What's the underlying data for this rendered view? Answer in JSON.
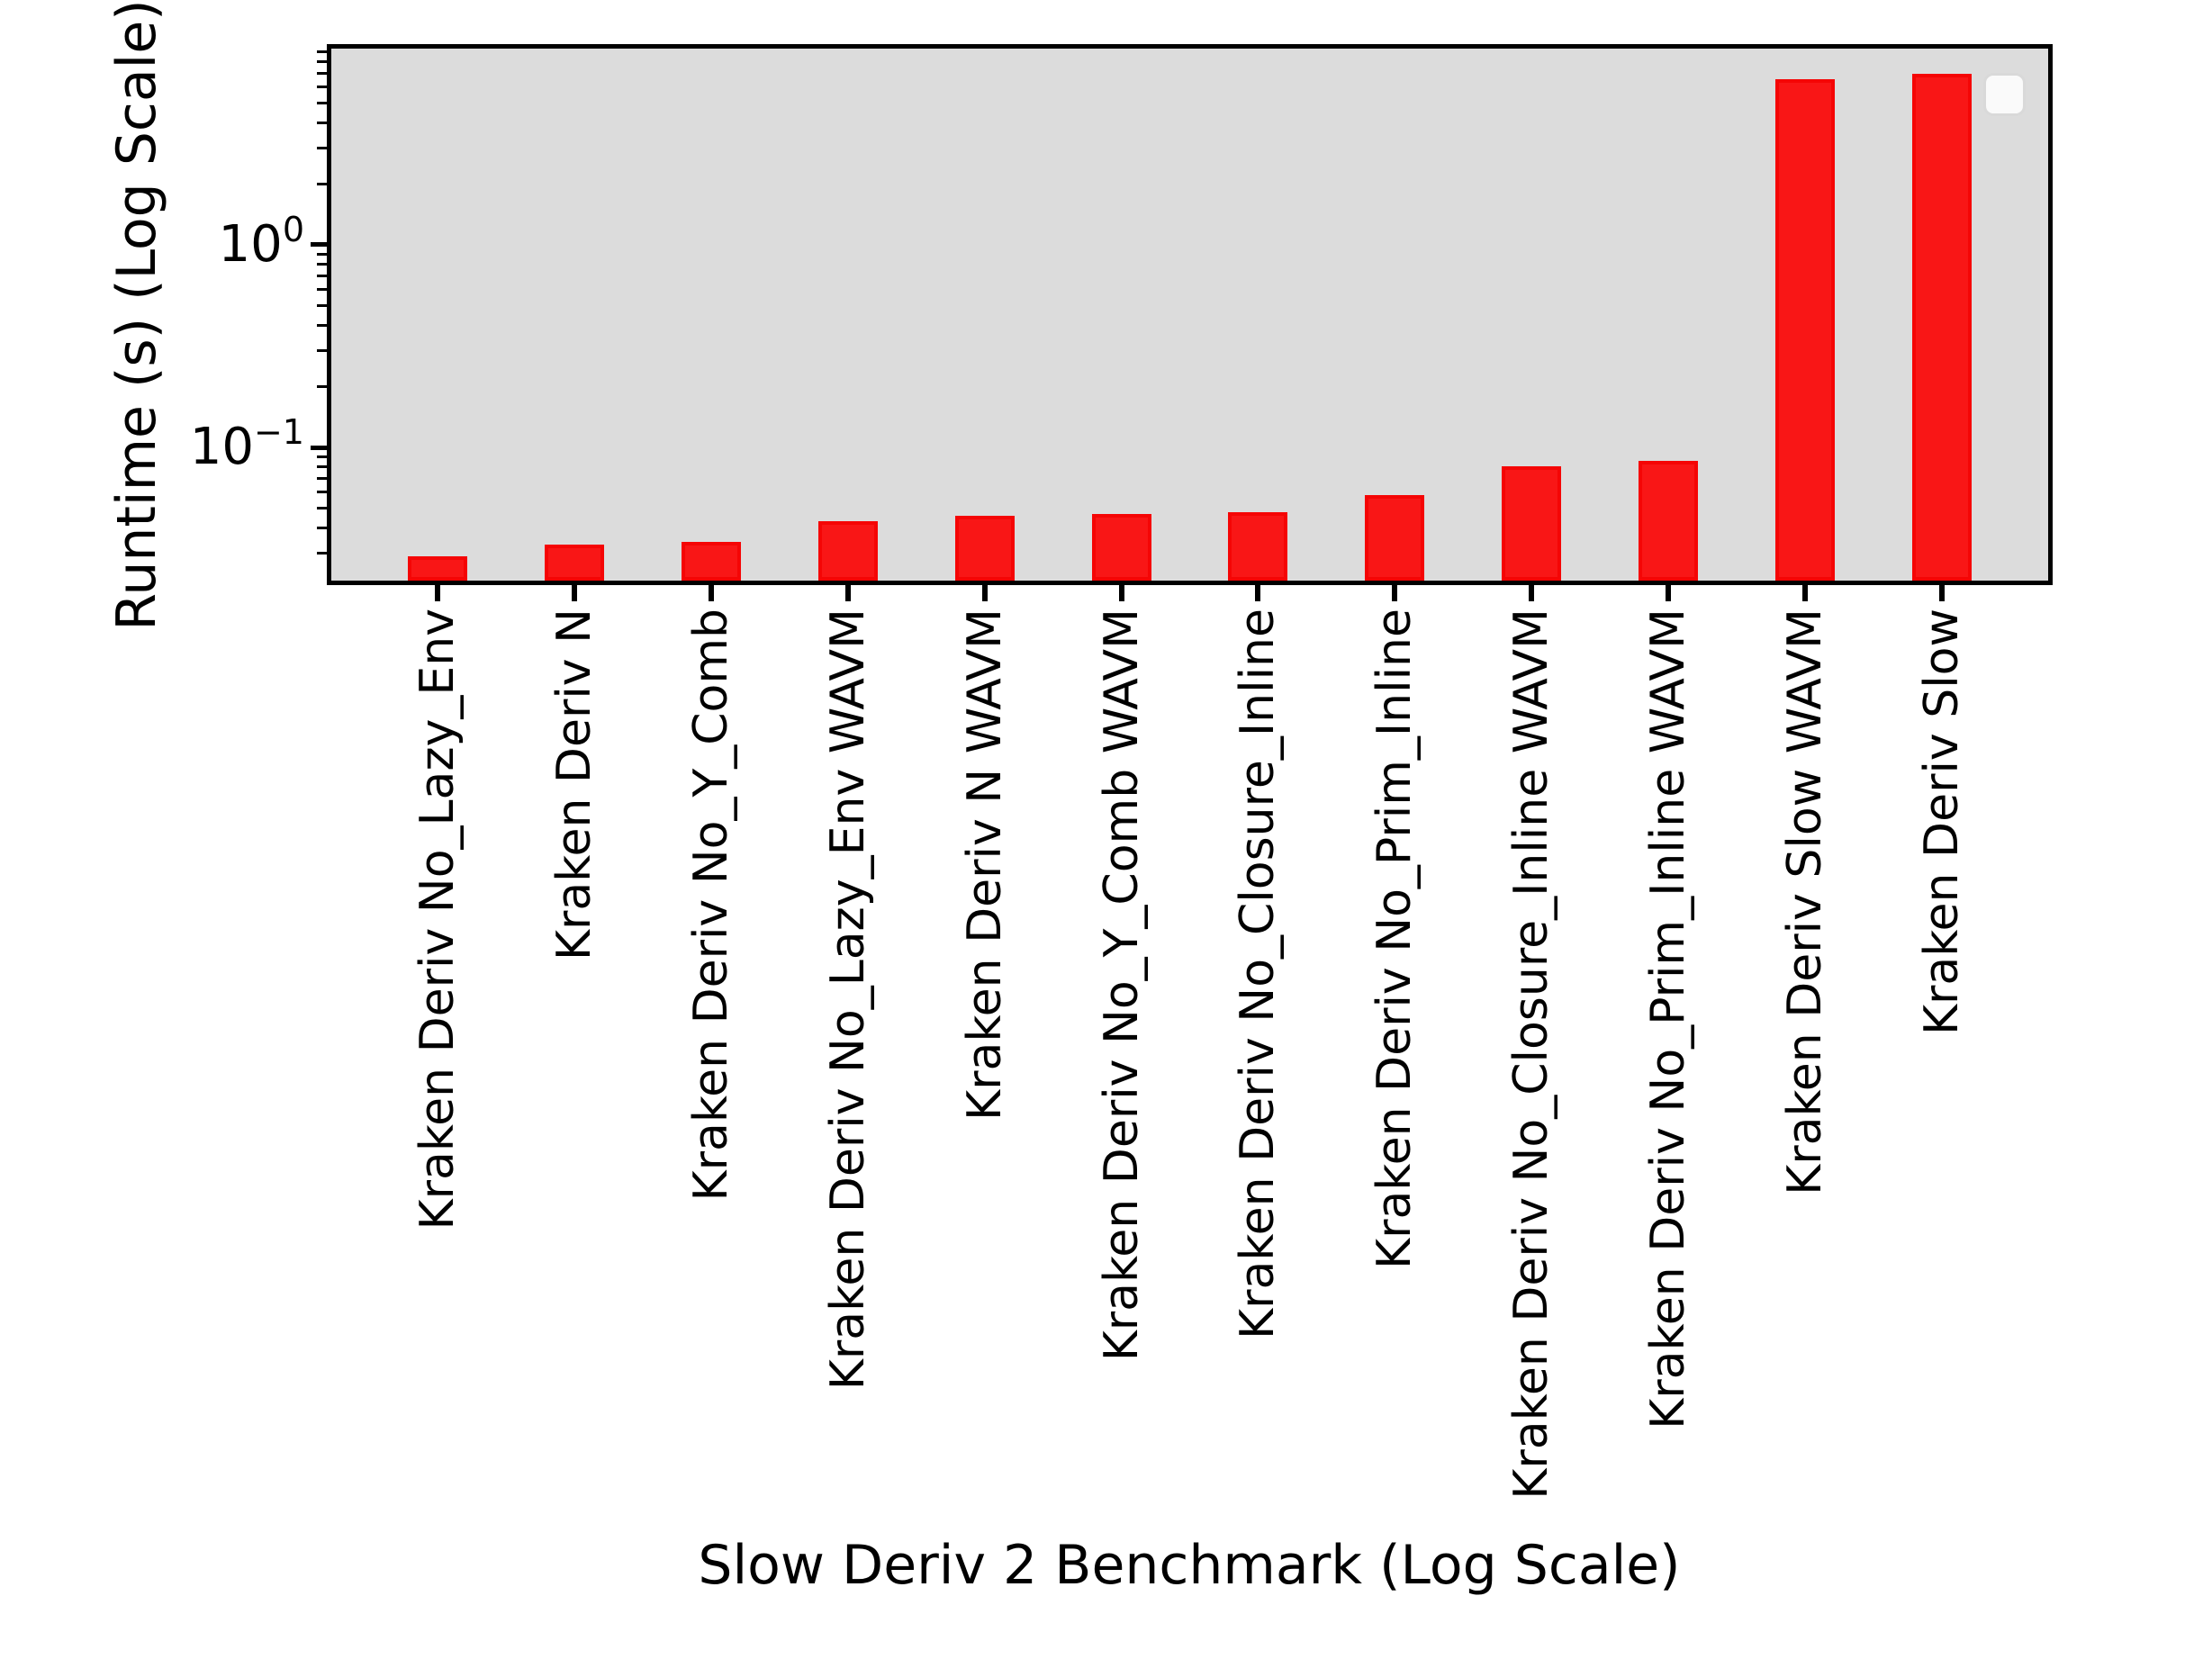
{
  "chart_data": {
    "type": "bar",
    "title": "",
    "xlabel": "Slow Deriv 2 Benchmark (Log Scale)",
    "ylabel": "Runtime (s) (Log Scale)",
    "yscale": "log",
    "ylim": [
      0.022,
      9.3
    ],
    "grid": false,
    "legend": {
      "visible": true,
      "entries": []
    },
    "categories": [
      "Kraken Deriv No_Lazy_Env",
      "Kraken Deriv N",
      "Kraken Deriv No_Y_Comb",
      "Kraken Deriv No_Lazy_Env WAVM",
      "Kraken Deriv N WAVM",
      "Kraken Deriv No_Y_Comb WAVM",
      "Kraken Deriv No_Closure_Inline",
      "Kraken Deriv No_Prim_Inline",
      "Kraken Deriv No_Closure_Inline WAVM",
      "Kraken Deriv No_Prim_Inline WAVM",
      "Kraken Deriv Slow WAVM",
      "Kraken Deriv Slow"
    ],
    "values": [
      0.029,
      0.033,
      0.034,
      0.043,
      0.046,
      0.047,
      0.048,
      0.058,
      0.081,
      0.086,
      6.6,
      7.0
    ],
    "y_major_ticks": [
      {
        "value": 1,
        "base": "10",
        "exp": "0"
      },
      {
        "value": 0.1,
        "base": "10",
        "exp": "−1"
      }
    ],
    "colors": {
      "bar_fill": "#f91616",
      "bar_edge": "#f50505",
      "plot_background": "#dcdcdc",
      "spine": "#000000",
      "figure_background": "#ffffff",
      "legend_fill": "#fafafa",
      "legend_border": "#d9d9d9"
    }
  }
}
